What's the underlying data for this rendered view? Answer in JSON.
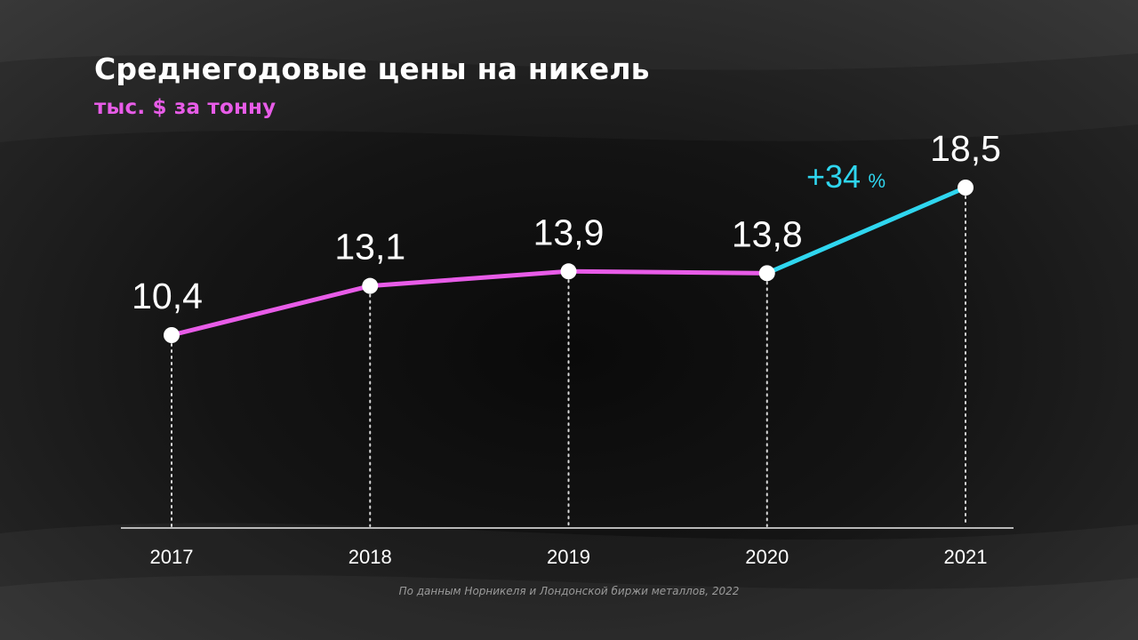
{
  "title": "Среднегодовые цены на никель",
  "subtitle": "тыс. $ за тонну",
  "source": "По данным Норникеля и Лондонской биржи металлов, 2022",
  "colors": {
    "accent": "#e85ce8",
    "highlight": "#2fd6ef",
    "text": "#ffffff",
    "axis": "#b8b8b8"
  },
  "chart_data": {
    "type": "line",
    "title": "Среднегодовые цены на никель",
    "subtitle": "тыс. $ за тонну",
    "categories": [
      "2017",
      "2018",
      "2019",
      "2020",
      "2021"
    ],
    "values": [
      10.4,
      13.1,
      13.9,
      13.8,
      18.5
    ],
    "value_labels": [
      "10,4",
      "13,1",
      "13,9",
      "13,8",
      "18,5"
    ],
    "annotation": {
      "text": "+34",
      "unit": "%",
      "from": "2020",
      "to": "2021"
    },
    "grid": false
  }
}
